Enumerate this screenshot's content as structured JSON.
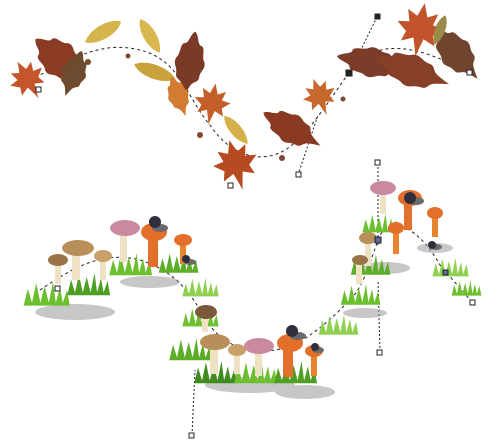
{
  "canvas": {
    "background": "#ffffff"
  },
  "colors": {
    "leaf_red": "#b5401f",
    "leaf_orange": "#d9742a",
    "leaf_brown": "#7a4a2c",
    "leaf_yellow": "#d9b54a",
    "mushroom_tan": "#b88f5a",
    "mushroom_pink": "#c98aa0",
    "mushroom_orange": "#e2702a",
    "stem": "#efe2c4",
    "grass": "#6cbf2e",
    "grass_dark": "#3f8c1e",
    "shadow": "#9a9a9a",
    "snail_shell": "#2e2e3c",
    "path": "#222222"
  },
  "icons": {
    "node_handle": "square-handle-icon",
    "leaf": "oak-leaf-icon",
    "mushroom": "mushroom-icon",
    "snail": "snail-icon",
    "grass": "grass-tuft-icon"
  },
  "brush_strokes": [
    {
      "name": "autumn-leaves-brush-stroke",
      "element": "leaf"
    },
    {
      "name": "mushroom-grass-brush-stroke",
      "element": "mushroom"
    }
  ]
}
